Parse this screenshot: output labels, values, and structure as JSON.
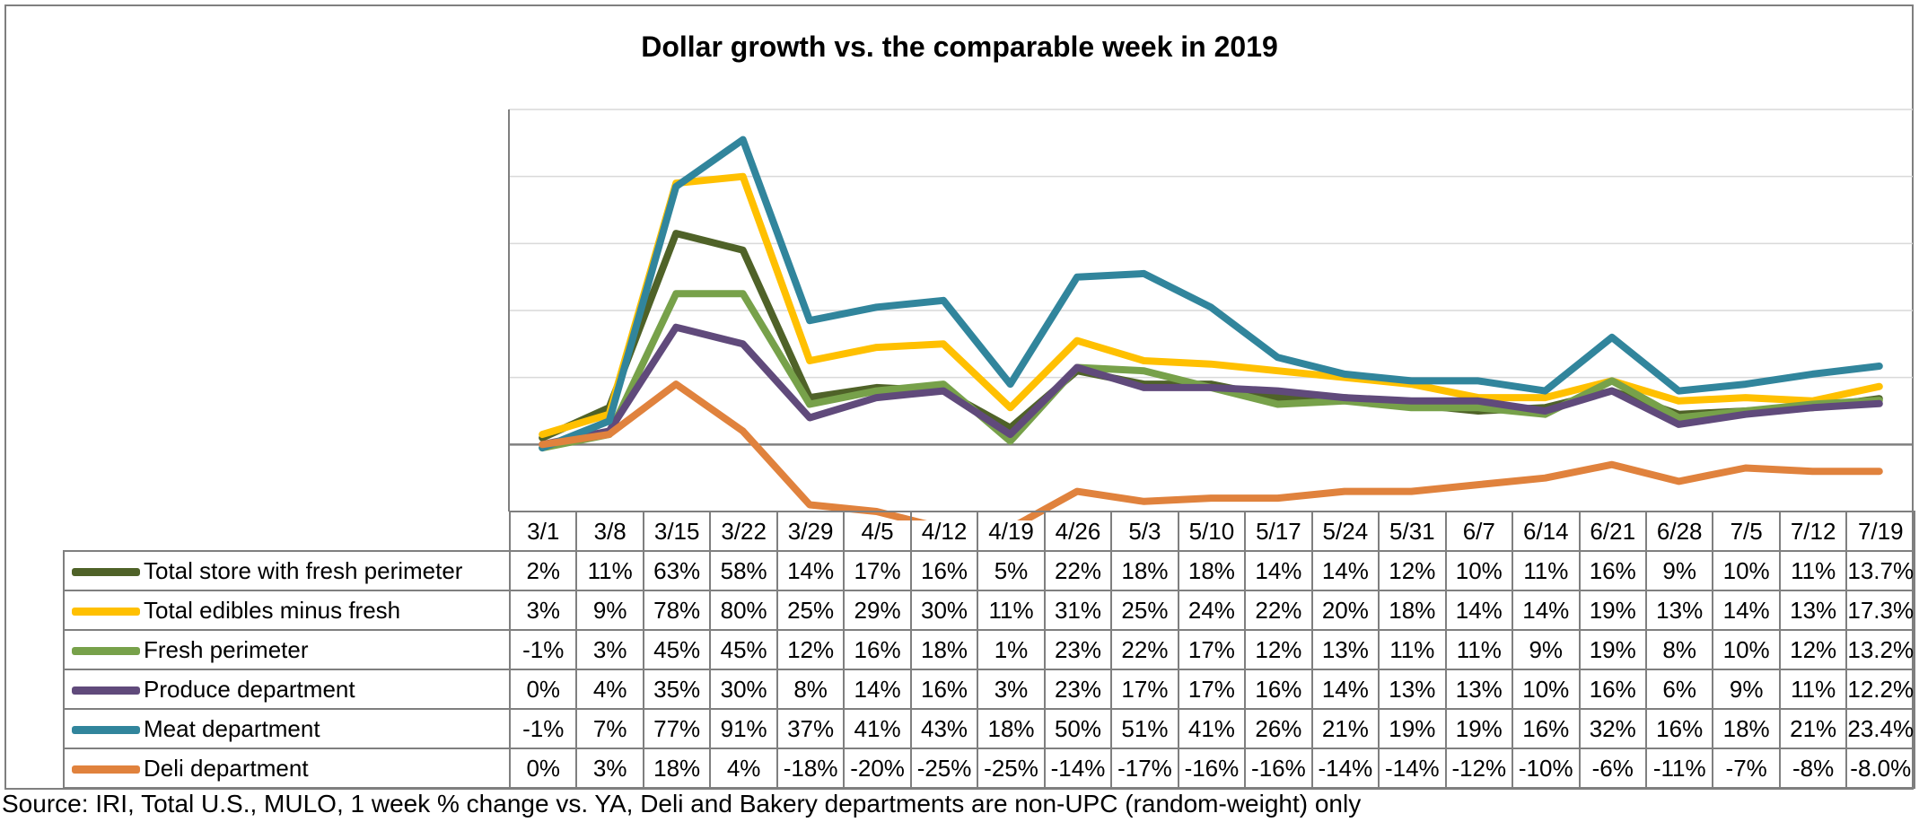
{
  "chart_data": {
    "type": "line",
    "title": "Dollar growth vs. the comparable week in 2019",
    "categories": [
      "3/1",
      "3/8",
      "3/15",
      "3/22",
      "3/29",
      "4/5",
      "4/12",
      "4/19",
      "4/26",
      "5/3",
      "5/10",
      "5/17",
      "5/24",
      "5/31",
      "6/7",
      "6/14",
      "6/21",
      "6/28",
      "7/5",
      "7/12",
      "7/19"
    ],
    "ylim": [
      -20,
      100
    ],
    "grid": true,
    "series": [
      {
        "name": "Total store with fresh perimeter",
        "color": "#4f6228",
        "values": [
          2,
          11,
          63,
          58,
          14,
          17,
          16,
          5,
          22,
          18,
          18,
          14,
          14,
          12,
          10,
          11,
          16,
          9,
          10,
          11,
          13.7
        ],
        "labels": [
          "2%",
          "11%",
          "63%",
          "58%",
          "14%",
          "17%",
          "16%",
          "5%",
          "22%",
          "18%",
          "18%",
          "14%",
          "14%",
          "12%",
          "10%",
          "11%",
          "16%",
          "9%",
          "10%",
          "11%",
          "13.7%"
        ]
      },
      {
        "name": "Total edibles minus fresh",
        "color": "#ffc000",
        "values": [
          3,
          9,
          78,
          80,
          25,
          29,
          30,
          11,
          31,
          25,
          24,
          22,
          20,
          18,
          14,
          14,
          19,
          13,
          14,
          13,
          17.3
        ],
        "labels": [
          "3%",
          "9%",
          "78%",
          "80%",
          "25%",
          "29%",
          "30%",
          "11%",
          "31%",
          "25%",
          "24%",
          "22%",
          "20%",
          "18%",
          "14%",
          "14%",
          "19%",
          "13%",
          "14%",
          "13%",
          "17.3%"
        ]
      },
      {
        "name": "Fresh perimeter",
        "color": "#77a14a",
        "values": [
          -1,
          3,
          45,
          45,
          12,
          16,
          18,
          1,
          23,
          22,
          17,
          12,
          13,
          11,
          11,
          9,
          19,
          8,
          10,
          12,
          13.2
        ],
        "labels": [
          "-1%",
          "3%",
          "45%",
          "45%",
          "12%",
          "16%",
          "18%",
          "1%",
          "23%",
          "22%",
          "17%",
          "12%",
          "13%",
          "11%",
          "11%",
          "9%",
          "19%",
          "8%",
          "10%",
          "12%",
          "13.2%"
        ]
      },
      {
        "name": "Produce department",
        "color": "#604a7b",
        "values": [
          0,
          4,
          35,
          30,
          8,
          14,
          16,
          3,
          23,
          17,
          17,
          16,
          14,
          13,
          13,
          10,
          16,
          6,
          9,
          11,
          12.2
        ],
        "labels": [
          "0%",
          "4%",
          "35%",
          "30%",
          "8%",
          "14%",
          "16%",
          "3%",
          "23%",
          "17%",
          "17%",
          "16%",
          "14%",
          "13%",
          "13%",
          "10%",
          "16%",
          "6%",
          "9%",
          "11%",
          "12.2%"
        ]
      },
      {
        "name": "Meat department",
        "color": "#31859c",
        "values": [
          -1,
          7,
          77,
          91,
          37,
          41,
          43,
          18,
          50,
          51,
          41,
          26,
          21,
          19,
          19,
          16,
          32,
          16,
          18,
          21,
          23.4
        ],
        "labels": [
          "-1%",
          "7%",
          "77%",
          "91%",
          "37%",
          "41%",
          "43%",
          "18%",
          "50%",
          "51%",
          "41%",
          "26%",
          "21%",
          "19%",
          "19%",
          "16%",
          "32%",
          "16%",
          "18%",
          "21%",
          "23.4%"
        ]
      },
      {
        "name": "Deli department",
        "color": "#e0823d",
        "values": [
          0,
          3,
          18,
          4,
          -18,
          -20,
          -25,
          -25,
          -14,
          -17,
          -16,
          -16,
          -14,
          -14,
          -12,
          -10,
          -6,
          -11,
          -7,
          -8,
          -8.0
        ],
        "labels": [
          "0%",
          "3%",
          "18%",
          "4%",
          "-18%",
          "-20%",
          "-25%",
          "-25%",
          "-14%",
          "-17%",
          "-16%",
          "-16%",
          "-14%",
          "-14%",
          "-12%",
          "-10%",
          "-6%",
          "-11%",
          "-7%",
          "-8%",
          "-8.0%"
        ]
      }
    ]
  },
  "source": "Source: IRI, Total U.S., MULO, 1 week % change vs. YA, Deli and Bakery departments are non-UPC (random-weight) only"
}
